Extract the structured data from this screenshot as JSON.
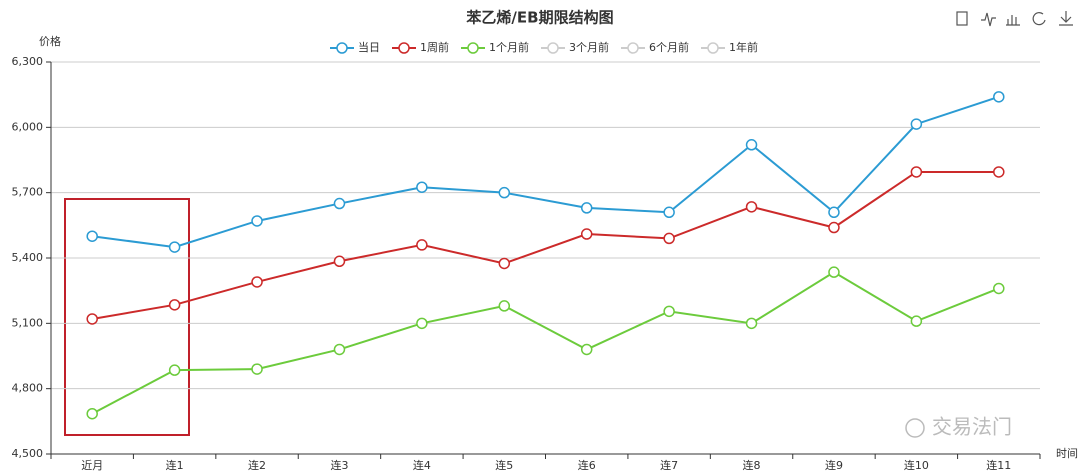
{
  "chart_data": {
    "type": "line",
    "title": "苯乙烯/EB期限结构图",
    "y_axis_label": "价格",
    "x_axis_label": "时间",
    "categories": [
      "近月",
      "连1",
      "连2",
      "连3",
      "连4",
      "连5",
      "连6",
      "连7",
      "连8",
      "连9",
      "连10",
      "连11"
    ],
    "series": [
      {
        "name": "当日",
        "color": "#2b9bd3",
        "values": [
          5500,
          5450,
          5570,
          5650,
          5725,
          5700,
          5630,
          5610,
          5920,
          5610,
          6015,
          6140
        ]
      },
      {
        "name": "1周前",
        "color": "#cc2a2a",
        "values": [
          5120,
          5185,
          5290,
          5385,
          5460,
          5375,
          5510,
          5490,
          5635,
          5540,
          5795,
          5795
        ]
      },
      {
        "name": "1个月前",
        "color": "#6ccb3c",
        "values": [
          4685,
          4885,
          4890,
          4980,
          5100,
          5180,
          4980,
          5155,
          5100,
          5335,
          5110,
          5260
        ]
      }
    ],
    "hidden_series": [
      "3个月前",
      "6个月前",
      "1年前"
    ],
    "ylim": [
      4500,
      6300
    ],
    "yticks": [
      {
        "value": 4500,
        "label": "4,500"
      },
      {
        "value": 4800,
        "label": "4,800"
      },
      {
        "value": 5100,
        "label": "5,100"
      },
      {
        "value": 5400,
        "label": "5,400"
      },
      {
        "value": 5700,
        "label": "5,700"
      },
      {
        "value": 6000,
        "label": "6,000"
      },
      {
        "value": 6300,
        "label": "6,300"
      }
    ],
    "grid": true,
    "legend": "top",
    "watermark": "交易法门"
  }
}
